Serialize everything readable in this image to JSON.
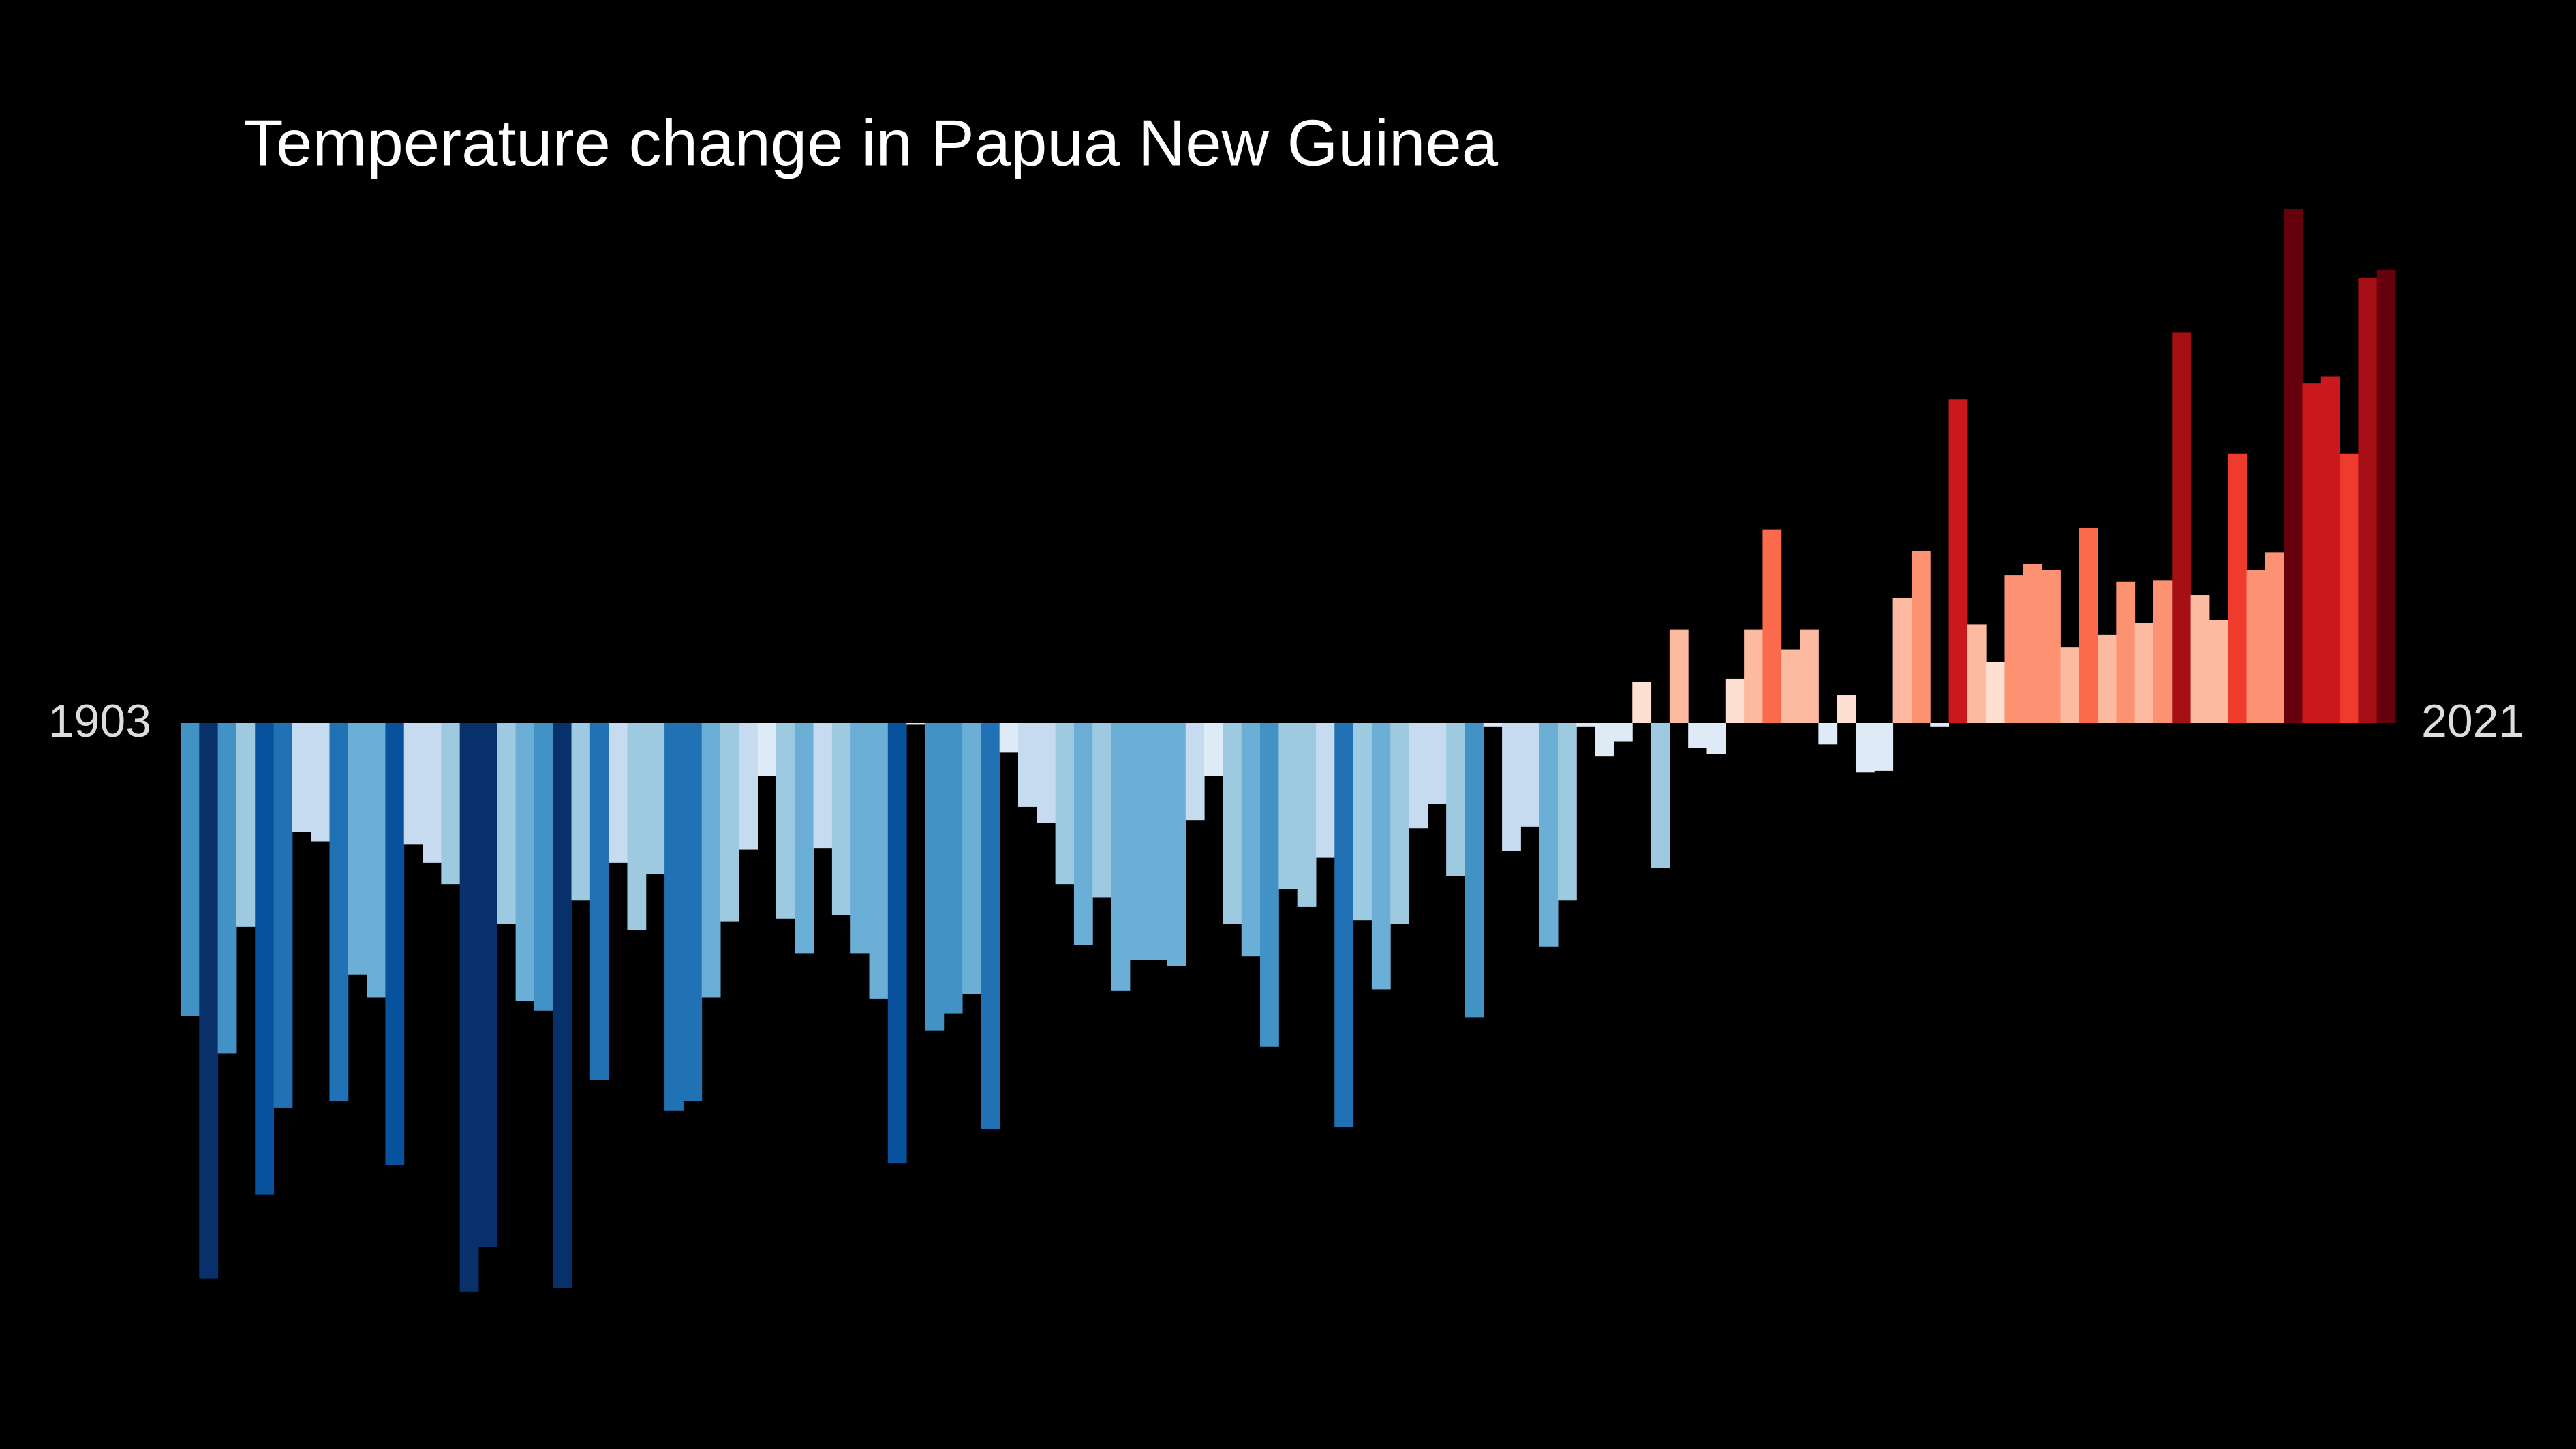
{
  "chart_data": {
    "type": "bar",
    "title": "Temperature change in Papua New Guinea",
    "xlim": [
      1903,
      2021
    ],
    "values": [
      -1.78,
      -3.38,
      -2.01,
      -1.24,
      -2.87,
      -2.34,
      -0.66,
      -0.72,
      -2.3,
      -1.53,
      -1.67,
      -2.69,
      -0.74,
      -0.85,
      -0.98,
      -3.46,
      -3.19,
      -1.22,
      -1.69,
      -1.75,
      -3.44,
      -1.08,
      -2.17,
      -0.85,
      -1.26,
      -0.92,
      -2.36,
      -2.3,
      -1.67,
      -1.21,
      -0.77,
      -0.32,
      -1.19,
      -1.4,
      -0.76,
      -1.17,
      -1.4,
      -1.68,
      -2.68,
      -0.01,
      -1.87,
      -1.77,
      -1.65,
      -2.47,
      -0.18,
      -0.51,
      -0.61,
      -0.98,
      -1.35,
      -1.06,
      -1.63,
      -1.44,
      -1.44,
      -1.48,
      -0.59,
      -0.32,
      -1.22,
      -1.42,
      -1.97,
      -1.01,
      -1.12,
      -0.82,
      -2.46,
      -1.2,
      -1.62,
      -1.22,
      -0.64,
      -0.49,
      -0.93,
      -1.79,
      -0.02,
      -0.78,
      -0.63,
      -1.36,
      -1.08,
      -0.02,
      -0.2,
      -0.11,
      0.25,
      -0.88,
      0.57,
      -0.15,
      -0.19,
      0.27,
      0.57,
      1.18,
      0.45,
      0.57,
      -0.13,
      0.17,
      -0.3,
      -0.29,
      0.76,
      1.05,
      -0.02,
      1.97,
      0.6,
      0.37,
      0.9,
      0.97,
      0.93,
      0.46,
      1.19,
      0.54,
      0.86,
      0.61,
      0.87,
      2.38,
      0.78,
      0.63,
      1.64,
      0.93,
      1.04,
      3.13,
      2.07,
      2.11,
      1.64,
      2.71,
      2.76
    ]
  }
}
